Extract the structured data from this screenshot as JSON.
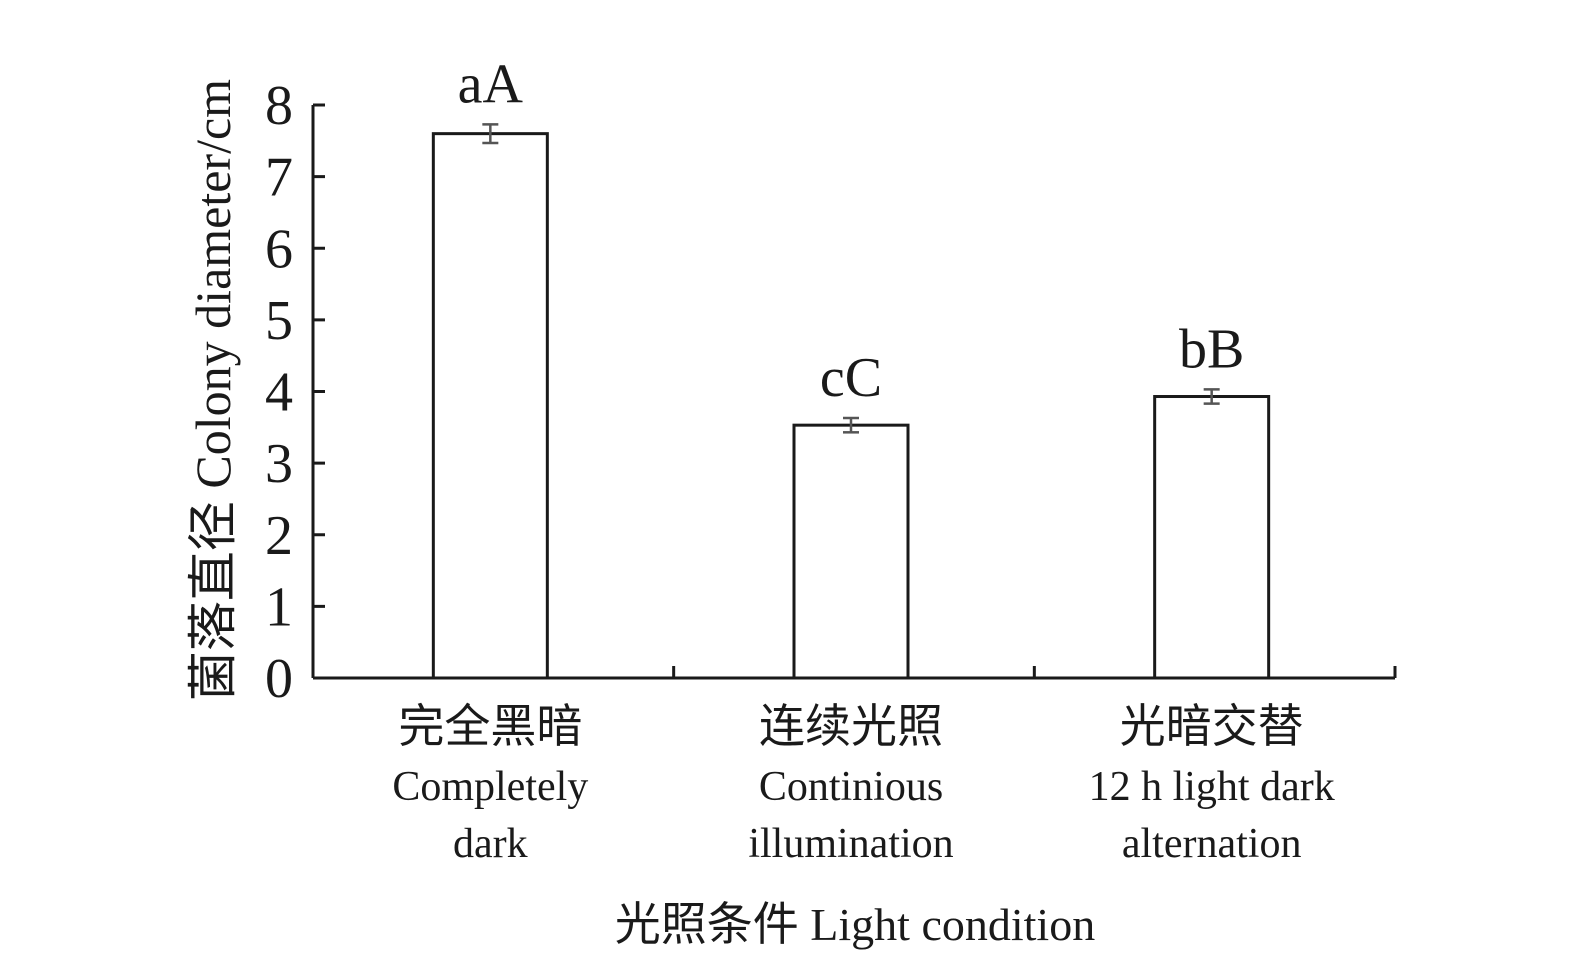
{
  "chart_data": {
    "type": "bar",
    "categories": [
      {
        "zh": "完全黑暗",
        "en": [
          "Completely",
          "dark"
        ]
      },
      {
        "zh": "连续光照",
        "en": [
          "Continious",
          "illumination"
        ]
      },
      {
        "zh": "光暗交替",
        "en": [
          "12 h light dark",
          "alternation"
        ]
      }
    ],
    "values": [
      7.6,
      3.53,
      3.93
    ],
    "errors": [
      0.13,
      0.1,
      0.1
    ],
    "significance_labels": [
      "aA",
      "cC",
      "bB"
    ],
    "ylabel": "菌落直径 Colony diameter/cm",
    "xlabel": "光照条件 Light condition",
    "ylim": [
      0,
      8
    ],
    "yticks": [
      "0",
      "1",
      "2",
      "3",
      "4",
      "5",
      "6",
      "7",
      "8"
    ],
    "grid": false,
    "legend": "none",
    "colors": {
      "bar_fill": "#ffffff",
      "bar_stroke": "#1a1a1a",
      "error_bar": "#555555"
    }
  }
}
